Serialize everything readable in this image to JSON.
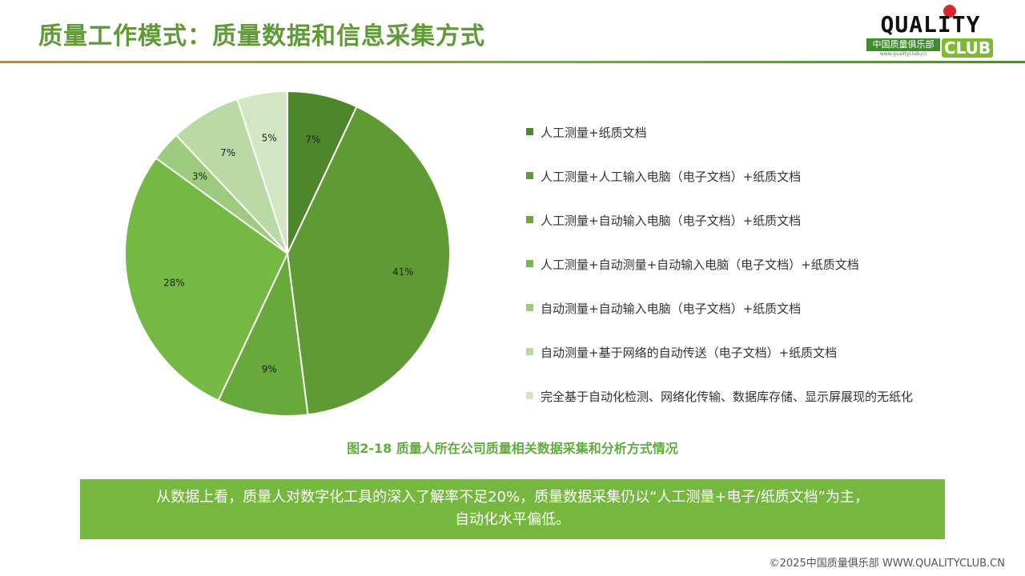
{
  "title": "质量工作模式：质量数据和信息采集方式",
  "logo": {
    "top": "QUALITY",
    "cn": "中国质量俱乐部",
    "url": "www.qualityclub.cn",
    "club": "CLUB"
  },
  "chart_data": {
    "type": "pie",
    "categories": [
      "人工测量+纸质文档",
      "人工测量+人工输入电脑（电子文档）+纸质文档",
      "人工测量+自动输入电脑（电子文档）+纸质文档",
      "人工测量+自动测量+自动输入电脑（电子文档）+纸质文档",
      "自动测量+自动输入电脑（电子文档）+纸质文档",
      "自动测量+基于网络的自动传送（电子文档）+纸质文档",
      "完全基于自动化检测、网络化传输、数据库存储、显示屏展现的无纸化"
    ],
    "values": [
      7,
      41,
      9,
      28,
      3,
      7,
      5
    ],
    "labels": [
      "7%",
      "41%",
      "9%",
      "28%",
      "3%",
      "7%",
      "5%"
    ],
    "colors": [
      "#4e862b",
      "#5f9a34",
      "#67a93a",
      "#74b944",
      "#9dcb7e",
      "#b9d9a5",
      "#d2e6c4"
    ],
    "legend_position": "right"
  },
  "caption": "图2-18  质量人所在公司质量相关数据采集和分析方式情况",
  "summary": {
    "line1": "从数据上看，质量人对数字化工具的深入了解率不足20%，质量数据采集仍以“人工测量+电子/纸质文档”为主，",
    "line2": "自动化水平偏低。"
  },
  "footer": "©2025中国质量俱乐部 WWW.QUALITYCLUB.CN"
}
